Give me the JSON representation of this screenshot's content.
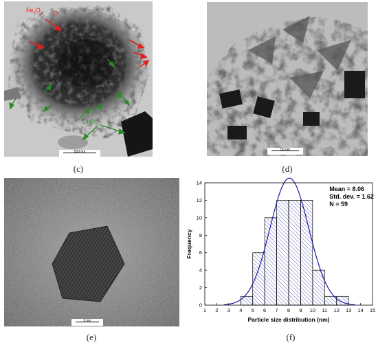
{
  "panels": {
    "c": {
      "caption": "(c)",
      "scale_label": "500 nm",
      "label_fe": "Fe",
      "label_fe_sub1": "3",
      "label_fe_o": "O",
      "label_fe_sub2": "4",
      "label_opbc": "OPBC",
      "arrow_colors": {
        "fe3o4": "#e02020",
        "opbc": "#2a8a2a"
      }
    },
    "d": {
      "caption": "(d)",
      "scale_label": "50 nm"
    },
    "e": {
      "caption": "(e)",
      "scale_label": "5 nm"
    },
    "f": {
      "caption": "(f)"
    }
  },
  "chart_data": {
    "type": "bar",
    "title": "",
    "xlabel": "Particle size distribution (nm)",
    "ylabel": "Frequency",
    "xlim": [
      1,
      15
    ],
    "ylim": [
      0,
      14
    ],
    "xticks": [
      1,
      2,
      3,
      4,
      5,
      6,
      7,
      8,
      9,
      10,
      11,
      12,
      13,
      14,
      15
    ],
    "yticks": [
      0,
      2,
      4,
      6,
      8,
      10,
      12,
      14
    ],
    "bin_width": 1,
    "bins": [
      {
        "center": 4.5,
        "count": 1
      },
      {
        "center": 5.5,
        "count": 6
      },
      {
        "center": 6.5,
        "count": 10
      },
      {
        "center": 7.5,
        "count": 12
      },
      {
        "center": 8.5,
        "count": 12
      },
      {
        "center": 9.5,
        "count": 12
      },
      {
        "center": 10.5,
        "count": 4
      },
      {
        "center": 11.5,
        "count": 1
      },
      {
        "center": 12.5,
        "count": 1
      }
    ],
    "fit": {
      "type": "gaussian",
      "mean": 8.06,
      "std": 1.62,
      "color": "#1a1aa8"
    },
    "bar_color": "#1a1aa8",
    "stats": {
      "mean": "Mean = 8.06",
      "std": "Std. dev. = 1.62",
      "n": "N = 59"
    }
  }
}
